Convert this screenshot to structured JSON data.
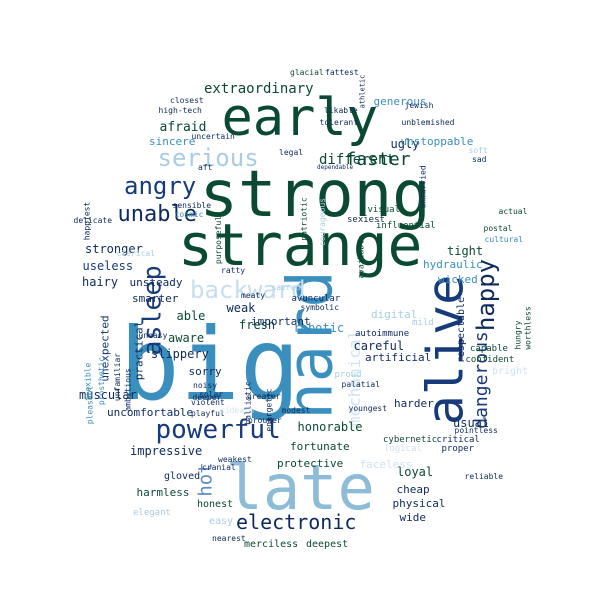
{
  "words": [
    {
      "text": "big",
      "color": "#3a8fbf"
    },
    {
      "text": "strong",
      "color": "#0b4a32"
    },
    {
      "text": "strange",
      "color": "#0b4a32"
    },
    {
      "text": "early",
      "color": "#0b4a32"
    },
    {
      "text": "late",
      "color": "#8cbcd8"
    },
    {
      "text": "hard",
      "color": "#3a8fbf"
    },
    {
      "text": "alive",
      "color": "#173a7a"
    },
    {
      "text": "powerful",
      "color": "#173a7a"
    },
    {
      "text": "backward",
      "color": "#c6dff0"
    },
    {
      "text": "serious",
      "color": "#a9cde6"
    },
    {
      "text": "asleep",
      "color": "#173a7a"
    },
    {
      "text": "angry",
      "color": "#173a7a"
    },
    {
      "text": "unable",
      "color": "#0e2a5c"
    },
    {
      "text": "happy",
      "color": "#0e2a5c"
    },
    {
      "text": "electronic",
      "color": "#0e2a5c"
    },
    {
      "text": "hot",
      "color": "#5f8fc0"
    },
    {
      "text": "faster",
      "color": "#0b4a32"
    },
    {
      "text": "dangerous",
      "color": "#173a7a"
    },
    {
      "text": "mechanical",
      "color": "#cfe3f2"
    },
    {
      "text": "extraordinary",
      "color": "#0b4a32"
    },
    {
      "text": "different",
      "color": "#0b4a32"
    },
    {
      "text": "afraid",
      "color": "#0b4a32"
    },
    {
      "text": "stronger",
      "color": "#0e2a5c"
    },
    {
      "text": "useless",
      "color": "#173a7a"
    },
    {
      "text": "hairy",
      "color": "#0e2a5c"
    },
    {
      "text": "unsteady",
      "color": "#0e2a5c"
    },
    {
      "text": "smarter",
      "color": "#0e2a5c"
    },
    {
      "text": "able",
      "color": "#0b4a32"
    },
    {
      "text": "aware",
      "color": "#0b4a32"
    },
    {
      "text": "weak",
      "color": "#0e2a5c"
    },
    {
      "text": "fresh",
      "color": "#0b4a32"
    },
    {
      "text": "important",
      "color": "#0e2a5c"
    },
    {
      "text": "robotic",
      "color": "#3a8fbf"
    },
    {
      "text": "slippery",
      "color": "#0e2a5c"
    },
    {
      "text": "sorry",
      "color": "#0e2a5c"
    },
    {
      "text": "practical",
      "color": "#0e2a5c"
    },
    {
      "text": "unexpected",
      "color": "#173a7a"
    },
    {
      "text": "muscular",
      "color": "#0e2a5c"
    },
    {
      "text": "uncomfortable",
      "color": "#0e2a5c"
    },
    {
      "text": "impressive",
      "color": "#0e2a5c"
    },
    {
      "text": "honorable",
      "color": "#0b4a32"
    },
    {
      "text": "fortunate",
      "color": "#0b4a32"
    },
    {
      "text": "protective",
      "color": "#0b4a32"
    },
    {
      "text": "harmless",
      "color": "#0b4a32"
    },
    {
      "text": "honest",
      "color": "#0b4a32"
    },
    {
      "text": "loyal",
      "color": "#0b4a32"
    },
    {
      "text": "cheap",
      "color": "#0e2a5c"
    },
    {
      "text": "physical",
      "color": "#0e2a5c"
    },
    {
      "text": "careful",
      "color": "#0e2a5c"
    },
    {
      "text": "artificial",
      "color": "#0e2a5c"
    },
    {
      "text": "harder",
      "color": "#0e2a5c"
    },
    {
      "text": "usual",
      "color": "#0e2a5c"
    },
    {
      "text": "digital",
      "color": "#a9cde6"
    },
    {
      "text": "tight",
      "color": "#0b4a32"
    },
    {
      "text": "hydraulic",
      "color": "#3a8fbf"
    },
    {
      "text": "wicked",
      "color": "#3a8fbf"
    },
    {
      "text": "respectable",
      "color": "#0e2a5c"
    },
    {
      "text": "ugly",
      "color": "#0e2a5c"
    },
    {
      "text": "unstoppable",
      "color": "#3a8fbf"
    },
    {
      "text": "generous",
      "color": "#3a8fbf"
    },
    {
      "text": "sincere",
      "color": "#3a8fbf"
    },
    {
      "text": "influential",
      "color": "#0b4a32"
    },
    {
      "text": "visual",
      "color": "#0b4a32"
    },
    {
      "text": "sexiest",
      "color": "#0e2a5c"
    },
    {
      "text": "autoimmune",
      "color": "#0e2a5c"
    },
    {
      "text": "avuncular",
      "color": "#0e2a5c"
    },
    {
      "text": "symbolic",
      "color": "#0e2a5c"
    },
    {
      "text": "proud",
      "color": "#a9cde6"
    },
    {
      "text": "noisy",
      "color": "#0e2a5c"
    },
    {
      "text": "deeper",
      "color": "#0e2a5c"
    },
    {
      "text": "playful",
      "color": "#0e2a5c"
    },
    {
      "text": "violent",
      "color": "#0e2a5c"
    },
    {
      "text": "greater",
      "color": "#0e2a5c"
    },
    {
      "text": "youngest",
      "color": "#0e2a5c"
    },
    {
      "text": "modest",
      "color": "#0e2a5c"
    },
    {
      "text": "palatial",
      "color": "#0e2a5c"
    },
    {
      "text": "cybernetic",
      "color": "#0b4a32"
    },
    {
      "text": "critical",
      "color": "#0e2a5c"
    },
    {
      "text": "proper",
      "color": "#0e2a5c"
    },
    {
      "text": "reliable",
      "color": "#0e2a5c"
    },
    {
      "text": "pointless",
      "color": "#0e2a5c"
    },
    {
      "text": "bright",
      "color": "#cfe3f2"
    },
    {
      "text": "capable",
      "color": "#0b4a32"
    },
    {
      "text": "confident",
      "color": "#0b4a32"
    },
    {
      "text": "hungry",
      "color": "#0b4a32"
    },
    {
      "text": "worthless",
      "color": "#0b4a32"
    },
    {
      "text": "wide",
      "color": "#0e2a5c"
    },
    {
      "text": "faceless",
      "color": "#cfe3f2"
    },
    {
      "text": "logical",
      "color": "#cfe3f2"
    },
    {
      "text": "easy",
      "color": "#a9cde6"
    },
    {
      "text": "elegant",
      "color": "#a9cde6"
    },
    {
      "text": "nearest",
      "color": "#0e2a5c"
    },
    {
      "text": "merciless",
      "color": "#0b4a32"
    },
    {
      "text": "deepest",
      "color": "#0b4a32"
    },
    {
      "text": "weakest",
      "color": "#0e2a5c"
    },
    {
      "text": "cranial",
      "color": "#0e2a5c"
    },
    {
      "text": "gloved",
      "color": "#0e2a5c"
    },
    {
      "text": "sidearm",
      "color": "#cfe3f2"
    },
    {
      "text": "solar",
      "color": "#0e2a5c"
    },
    {
      "text": "flexible",
      "color": "#3a8fbf"
    },
    {
      "text": "prosthetic",
      "color": "#3a8fbf"
    },
    {
      "text": "pleasant",
      "color": "#3a8fbf"
    },
    {
      "text": "high-tech",
      "color": "#0e2a5c"
    },
    {
      "text": "closest",
      "color": "#0e2a5c"
    },
    {
      "text": "glacial",
      "color": "#0b4a32"
    },
    {
      "text": "fattest",
      "color": "#0e2a5c"
    },
    {
      "text": "athletic",
      "color": "#0e2a5c"
    },
    {
      "text": "likable",
      "color": "#0e2a5c"
    },
    {
      "text": "tolerant",
      "color": "#0e2a5c"
    },
    {
      "text": "unblemished",
      "color": "#0e2a5c"
    },
    {
      "text": "jewish",
      "color": "#0e2a5c"
    },
    {
      "text": "uncertain",
      "color": "#0e2a5c"
    },
    {
      "text": "soft",
      "color": "#a9cde6"
    },
    {
      "text": "sad",
      "color": "#0e2a5c"
    },
    {
      "text": "legal",
      "color": "#0e2a5c"
    },
    {
      "text": "dependable",
      "color": "#0e2a5c"
    },
    {
      "text": "aft",
      "color": "#0e2a5c"
    },
    {
      "text": "sensible",
      "color": "#0e2a5c"
    },
    {
      "text": "cosmic",
      "color": "#3a8fbf"
    },
    {
      "text": "patriotic",
      "color": "#0b4a32"
    },
    {
      "text": "courageous",
      "color": "#a9cde6"
    },
    {
      "text": "unmarried",
      "color": "#0e2a5c"
    },
    {
      "text": "actual",
      "color": "#0b4a32"
    },
    {
      "text": "postal",
      "color": "#0b4a32"
    },
    {
      "text": "cultural",
      "color": "#3a8fbf"
    },
    {
      "text": "happiest",
      "color": "#0e2a5c"
    },
    {
      "text": "delicate",
      "color": "#0e2a5c"
    },
    {
      "text": "clerical",
      "color": "#a9cde6"
    },
    {
      "text": "purposeful",
      "color": "#0b4a32"
    },
    {
      "text": "ratty",
      "color": "#0e2a5c"
    },
    {
      "text": "meaty",
      "color": "#0e2a5c"
    },
    {
      "text": "available",
      "color": "#0b4a32"
    },
    {
      "text": "sacred",
      "color": "#a9cde6"
    },
    {
      "text": "unfamiliar",
      "color": "#0e2a5c"
    },
    {
      "text": "ambitious",
      "color": "#0e2a5c"
    },
    {
      "text": "uneasy",
      "color": "#0e2a5c"
    },
    {
      "text": "energetic",
      "color": "#0e2a5c"
    },
    {
      "text": "ballistic",
      "color": "#0e2a5c"
    },
    {
      "text": "prouder",
      "color": "#0e2a5c"
    },
    {
      "text": "mild",
      "color": "#a9cde6"
    }
  ]
}
